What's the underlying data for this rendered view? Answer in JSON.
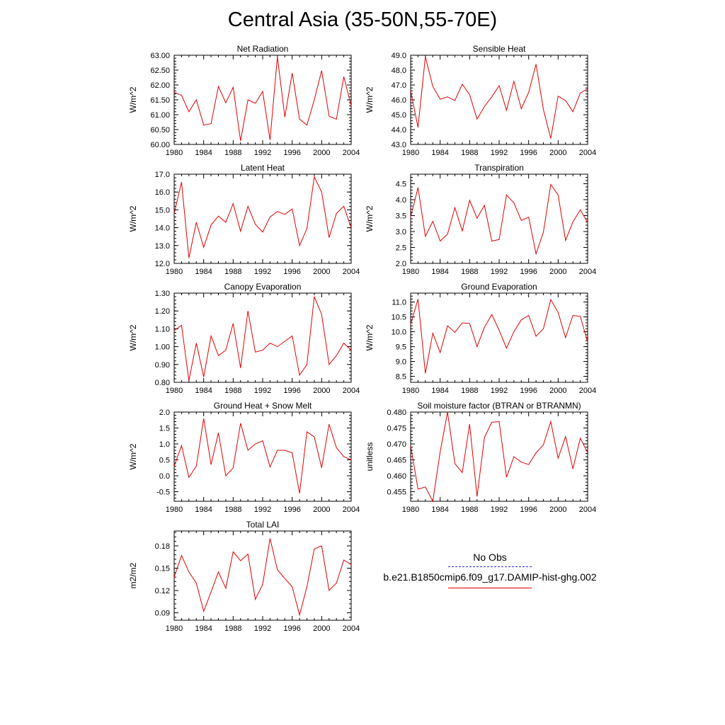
{
  "title": "Central Asia (35-50N,55-70E)",
  "legend": {
    "obs_label": "No Obs",
    "obs_color": "#2a2ad8",
    "model_label": "b.e21.B1850cmip6.f09_g17.DAMIP-hist-ghg.002",
    "model_color": "#e00000"
  },
  "chart_data": [
    {
      "type": "line",
      "title": "Net Radiation",
      "ylabel": "W/m^2",
      "xlim": [
        1980,
        2004
      ],
      "ylim": [
        60.0,
        63.0
      ],
      "xticks": [
        "1980",
        "1984",
        "1988",
        "1992",
        "1996",
        "2000",
        "2004"
      ],
      "yticks": [
        "60.00",
        "60.50",
        "61.00",
        "61.50",
        "62.00",
        "62.50",
        "63.00"
      ],
      "x": [
        1980,
        1981,
        1982,
        1983,
        1984,
        1985,
        1986,
        1987,
        1988,
        1989,
        1990,
        1991,
        1992,
        1993,
        1994,
        1995,
        1996,
        1997,
        1998,
        1999,
        2000,
        2001,
        2002,
        2003,
        2004
      ],
      "series": [
        {
          "values": [
            61.75,
            61.65,
            61.1,
            61.5,
            60.65,
            60.7,
            61.95,
            61.4,
            61.92,
            60.12,
            61.5,
            61.38,
            61.78,
            60.15,
            62.95,
            60.92,
            62.4,
            60.85,
            60.65,
            61.5,
            62.48,
            60.95,
            60.85,
            62.28,
            61.3
          ]
        }
      ]
    },
    {
      "type": "line",
      "title": "Sensible Heat",
      "ylabel": "W/m^2",
      "xlim": [
        1980,
        2004
      ],
      "ylim": [
        43.0,
        49.0
      ],
      "xticks": [
        "1980",
        "1984",
        "1988",
        "1992",
        "1996",
        "2000",
        "2004"
      ],
      "yticks": [
        "43.0",
        "44.0",
        "45.0",
        "46.0",
        "47.0",
        "48.0",
        "49.0"
      ],
      "x": [
        1980,
        1981,
        1982,
        1983,
        1984,
        1985,
        1986,
        1987,
        1988,
        1989,
        1990,
        1991,
        1992,
        1993,
        1994,
        1995,
        1996,
        1997,
        1998,
        1999,
        2000,
        2001,
        2002,
        2003,
        2004
      ],
      "series": [
        {
          "values": [
            46.6,
            44.15,
            48.9,
            46.9,
            46.05,
            46.2,
            45.95,
            47.05,
            46.35,
            44.7,
            45.55,
            46.2,
            46.95,
            45.3,
            47.25,
            45.4,
            46.5,
            48.4,
            45.35,
            43.4,
            46.25,
            45.95,
            45.2,
            46.45,
            46.75
          ]
        }
      ]
    },
    {
      "type": "line",
      "title": "Latent Heat",
      "ylabel": "W/m^2",
      "xlim": [
        1980,
        2004
      ],
      "ylim": [
        12.0,
        17.0
      ],
      "xticks": [
        "1980",
        "1984",
        "1988",
        "1992",
        "1996",
        "2000",
        "2004"
      ],
      "yticks": [
        "12.0",
        "13.0",
        "14.0",
        "15.0",
        "16.0",
        "17.0"
      ],
      "x": [
        1980,
        1981,
        1982,
        1983,
        1984,
        1985,
        1986,
        1987,
        1988,
        1989,
        1990,
        1991,
        1992,
        1993,
        1994,
        1995,
        1996,
        1997,
        1998,
        1999,
        2000,
        2001,
        2002,
        2003,
        2004
      ],
      "series": [
        {
          "values": [
            14.8,
            16.55,
            12.3,
            14.3,
            12.9,
            14.15,
            14.65,
            14.3,
            15.35,
            13.8,
            15.2,
            14.2,
            13.75,
            14.6,
            14.9,
            14.75,
            15.05,
            13.0,
            13.95,
            16.85,
            16.0,
            13.45,
            14.8,
            15.2,
            14.0
          ]
        }
      ]
    },
    {
      "type": "line",
      "title": "Transpiration",
      "ylabel": "W/m^2",
      "xlim": [
        1980,
        2004
      ],
      "ylim": [
        2.0,
        4.8
      ],
      "xticks": [
        "1980",
        "1984",
        "1988",
        "1992",
        "1996",
        "2000",
        "2004"
      ],
      "yticks": [
        "2.0",
        "2.5",
        "3.0",
        "3.5",
        "4.0",
        "4.5"
      ],
      "x": [
        1980,
        1981,
        1982,
        1983,
        1984,
        1985,
        1986,
        1987,
        1988,
        1989,
        1990,
        1991,
        1992,
        1993,
        1994,
        1995,
        1996,
        1997,
        1998,
        1999,
        2000,
        2001,
        2002,
        2003,
        2004
      ],
      "series": [
        {
          "values": [
            3.45,
            4.38,
            2.85,
            3.32,
            2.7,
            2.92,
            3.75,
            3.02,
            3.98,
            3.42,
            3.82,
            2.7,
            2.75,
            4.15,
            3.9,
            3.35,
            3.45,
            2.3,
            2.98,
            4.48,
            4.15,
            2.72,
            3.3,
            3.68,
            3.28
          ]
        }
      ]
    },
    {
      "type": "line",
      "title": "Canopy Evaporation",
      "ylabel": "W/m^2",
      "xlim": [
        1980,
        2004
      ],
      "ylim": [
        0.8,
        1.3
      ],
      "xticks": [
        "1980",
        "1984",
        "1988",
        "1992",
        "1996",
        "2000",
        "2004"
      ],
      "yticks": [
        "0.80",
        "0.90",
        "1.00",
        "1.10",
        "1.20",
        "1.30"
      ],
      "x": [
        1980,
        1981,
        1982,
        1983,
        1984,
        1985,
        1986,
        1987,
        1988,
        1989,
        1990,
        1991,
        1992,
        1993,
        1994,
        1995,
        1996,
        1997,
        1998,
        1999,
        2000,
        2001,
        2002,
        2003,
        2004
      ],
      "series": [
        {
          "values": [
            1.09,
            1.12,
            0.81,
            1.02,
            0.83,
            1.06,
            0.95,
            0.98,
            1.13,
            0.88,
            1.2,
            0.97,
            0.98,
            1.02,
            1.0,
            1.03,
            1.06,
            0.84,
            0.9,
            1.28,
            1.18,
            0.9,
            0.95,
            1.02,
            0.98
          ]
        }
      ]
    },
    {
      "type": "line",
      "title": "Ground Evaporation",
      "ylabel": "W/m^2",
      "xlim": [
        1980,
        2004
      ],
      "ylim": [
        8.3,
        11.3
      ],
      "xticks": [
        "1980",
        "1984",
        "1988",
        "1992",
        "1996",
        "2000",
        "2004"
      ],
      "yticks": [
        "8.5",
        "9.0",
        "9.5",
        "10.0",
        "10.5",
        "11.0"
      ],
      "x": [
        1980,
        1981,
        1982,
        1983,
        1984,
        1985,
        1986,
        1987,
        1988,
        1989,
        1990,
        1991,
        1992,
        1993,
        1994,
        1995,
        1996,
        1997,
        1998,
        1999,
        2000,
        2001,
        2002,
        2003,
        2004
      ],
      "series": [
        {
          "values": [
            10.25,
            11.1,
            8.6,
            9.95,
            9.3,
            10.2,
            9.98,
            10.3,
            10.28,
            9.5,
            10.15,
            10.58,
            10.05,
            9.45,
            10.0,
            10.4,
            10.55,
            9.85,
            10.1,
            11.08,
            10.65,
            9.8,
            10.55,
            10.52,
            9.65
          ]
        }
      ]
    },
    {
      "type": "line",
      "title": "Ground Heat + Snow Melt",
      "ylabel": "W/m^2",
      "xlim": [
        1980,
        2004
      ],
      "ylim": [
        -0.8,
        2.0
      ],
      "xticks": [
        "1980",
        "1984",
        "1988",
        "1992",
        "1996",
        "2000",
        "2004"
      ],
      "yticks": [
        "-0.5",
        "0.0",
        "0.5",
        "1.0",
        "1.5",
        "2.0"
      ],
      "x": [
        1980,
        1981,
        1982,
        1983,
        1984,
        1985,
        1986,
        1987,
        1988,
        1989,
        1990,
        1991,
        1992,
        1993,
        1994,
        1995,
        1996,
        1997,
        1998,
        1999,
        2000,
        2001,
        2002,
        2003,
        2004
      ],
      "series": [
        {
          "values": [
            0.3,
            0.95,
            -0.05,
            0.3,
            1.8,
            0.35,
            1.35,
            0.0,
            0.25,
            1.65,
            0.8,
            1.0,
            1.1,
            0.28,
            0.8,
            0.8,
            0.72,
            -0.55,
            1.38,
            1.22,
            0.25,
            1.62,
            0.88,
            0.6,
            0.5
          ]
        }
      ]
    },
    {
      "type": "line",
      "title": "Soil moisture factor (BTRAN or BTRANMN)",
      "ylabel": "unitless",
      "xlim": [
        1980,
        2004
      ],
      "ylim": [
        0.452,
        0.48
      ],
      "xticks": [
        "1980",
        "1984",
        "1988",
        "1992",
        "1996",
        "2000",
        "2004"
      ],
      "yticks": [
        "0.455",
        "0.460",
        "0.465",
        "0.470",
        "0.475",
        "0.480"
      ],
      "x": [
        1980,
        1981,
        1982,
        1983,
        1984,
        1985,
        1986,
        1987,
        1988,
        1989,
        1990,
        1991,
        1992,
        1993,
        1994,
        1995,
        1996,
        1997,
        1998,
        1999,
        2000,
        2001,
        2002,
        2003,
        2004
      ],
      "series": [
        {
          "values": [
            0.4695,
            0.4558,
            0.4565,
            0.452,
            0.4675,
            0.48,
            0.4638,
            0.461,
            0.4762,
            0.4535,
            0.472,
            0.4768,
            0.477,
            0.4595,
            0.466,
            0.4643,
            0.4635,
            0.4672,
            0.4697,
            0.477,
            0.4655,
            0.4723,
            0.4622,
            0.4718,
            0.4672
          ]
        }
      ]
    },
    {
      "type": "line",
      "title": "Total LAI",
      "ylabel": "m2/m2",
      "xlim": [
        1980,
        2004
      ],
      "ylim": [
        0.08,
        0.2
      ],
      "xticks": [
        "1980",
        "1984",
        "1988",
        "1992",
        "1996",
        "2000",
        "2004"
      ],
      "yticks": [
        "0.09",
        "0.12",
        "0.15",
        "0.18"
      ],
      "x": [
        1980,
        1981,
        1982,
        1983,
        1984,
        1985,
        1986,
        1987,
        1988,
        1989,
        1990,
        1991,
        1992,
        1993,
        1994,
        1995,
        1996,
        1997,
        1998,
        1999,
        2000,
        2001,
        2002,
        2003,
        2004
      ],
      "series": [
        {
          "values": [
            0.138,
            0.167,
            0.145,
            0.13,
            0.092,
            0.118,
            0.145,
            0.123,
            0.172,
            0.16,
            0.169,
            0.108,
            0.128,
            0.19,
            0.148,
            0.136,
            0.125,
            0.087,
            0.125,
            0.176,
            0.18,
            0.12,
            0.13,
            0.161,
            0.155
          ]
        }
      ]
    }
  ]
}
